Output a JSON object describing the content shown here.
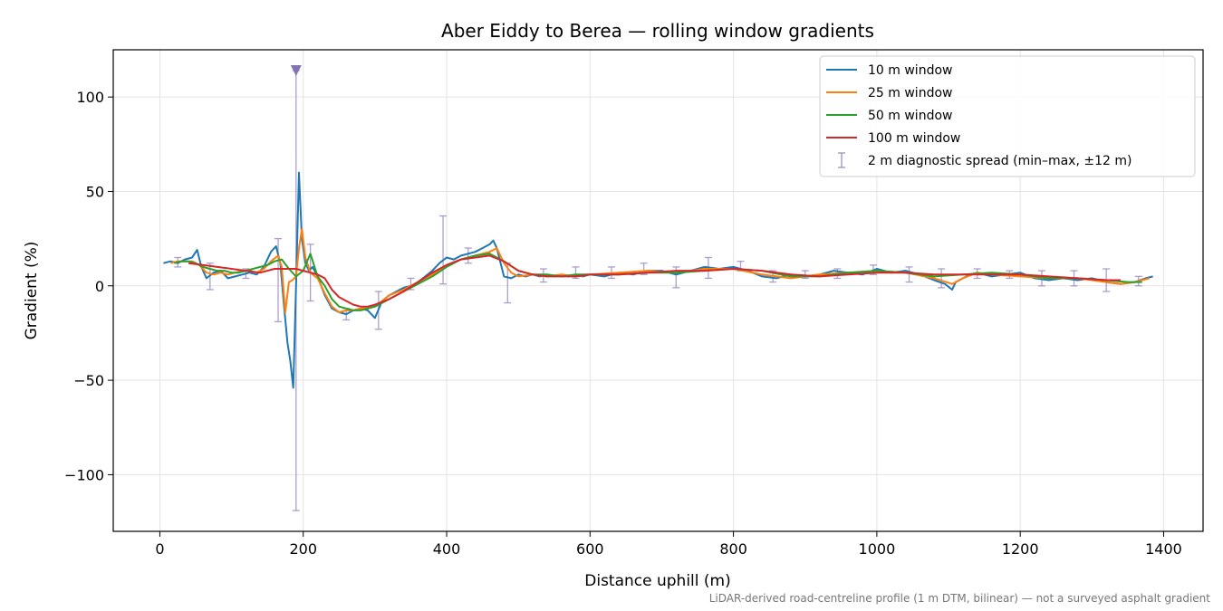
{
  "chart_data": {
    "type": "line",
    "title": "Aber Eiddy to Berea — rolling window gradients",
    "xlabel": "Distance uphill (m)",
    "ylabel": "Gradient (%)",
    "xlim": [
      -65,
      1455
    ],
    "ylim": [
      -130,
      125
    ],
    "xticks": [
      0,
      200,
      400,
      600,
      800,
      1000,
      1200,
      1400
    ],
    "yticks": [
      -100,
      -50,
      0,
      50,
      100
    ],
    "ytick_labels": [
      "−100",
      "−50",
      "0",
      "50",
      "100"
    ],
    "grid": true,
    "legend_position": "top-right",
    "footnote": "LiDAR-derived road-centreline profile (1 m DTM, bilinear) — not a surveyed asphalt gradient",
    "series": [
      {
        "name": "10 m window",
        "color": "#1f77b4",
        "x": [
          5,
          15,
          25,
          35,
          45,
          52,
          58,
          65,
          75,
          85,
          95,
          105,
          115,
          125,
          135,
          145,
          155,
          162,
          168,
          173,
          178,
          182,
          186,
          190,
          194,
          198,
          203,
          208,
          213,
          220,
          230,
          240,
          250,
          260,
          270,
          280,
          290,
          300,
          310,
          320,
          330,
          340,
          350,
          360,
          370,
          380,
          390,
          400,
          410,
          420,
          430,
          440,
          450,
          460,
          465,
          470,
          480,
          490,
          500,
          510,
          520,
          530,
          540,
          550,
          560,
          570,
          580,
          590,
          600,
          620,
          640,
          660,
          680,
          700,
          720,
          740,
          760,
          780,
          800,
          820,
          840,
          860,
          880,
          900,
          920,
          940,
          960,
          980,
          1000,
          1020,
          1040,
          1060,
          1080,
          1095,
          1105,
          1110,
          1120,
          1130,
          1140,
          1160,
          1180,
          1200,
          1220,
          1240,
          1260,
          1280,
          1300,
          1320,
          1340,
          1360,
          1375,
          1385
        ],
        "y": [
          12,
          13,
          12,
          14,
          15,
          19,
          10,
          4,
          7,
          8,
          4,
          5,
          6,
          7,
          6,
          10,
          18,
          21,
          12,
          -10,
          -30,
          -40,
          -54,
          0,
          60,
          25,
          12,
          8,
          10,
          5,
          -5,
          -12,
          -14,
          -15,
          -13,
          -12,
          -13,
          -17,
          -8,
          -5,
          -3,
          -1,
          0,
          2,
          5,
          8,
          12,
          15,
          14,
          16,
          17,
          18,
          20,
          22,
          24,
          20,
          5,
          4,
          6,
          5,
          6,
          5,
          6,
          5,
          6,
          5,
          6,
          5,
          6,
          5,
          7,
          6,
          8,
          8,
          6,
          8,
          10,
          9,
          10,
          8,
          5,
          4,
          6,
          5,
          6,
          8,
          7,
          6,
          9,
          7,
          8,
          6,
          3,
          1,
          -2,
          2,
          4,
          6,
          7,
          5,
          6,
          7,
          4,
          3,
          4,
          3,
          4,
          2,
          1,
          2,
          4,
          5
        ]
      },
      {
        "name": "25 m window",
        "color": "#ff7f0e",
        "x": [
          15,
          25,
          35,
          45,
          55,
          65,
          75,
          85,
          95,
          105,
          115,
          125,
          135,
          145,
          155,
          165,
          170,
          175,
          180,
          185,
          190,
          194,
          198,
          203,
          210,
          220,
          230,
          240,
          250,
          260,
          270,
          280,
          290,
          300,
          310,
          320,
          340,
          360,
          380,
          400,
          420,
          440,
          460,
          470,
          480,
          490,
          500,
          520,
          540,
          560,
          580,
          600,
          640,
          680,
          720,
          760,
          800,
          840,
          880,
          920,
          960,
          1000,
          1040,
          1080,
          1105,
          1120,
          1140,
          1160,
          1200,
          1240,
          1280,
          1320,
          1340,
          1360,
          1380
        ],
        "y": [
          12,
          13,
          13,
          13,
          11,
          7,
          6,
          7,
          6,
          7,
          8,
          8,
          7,
          9,
          13,
          16,
          10,
          -14,
          2,
          3,
          5,
          20,
          30,
          15,
          7,
          4,
          -4,
          -11,
          -14,
          -13,
          -13,
          -12,
          -12,
          -11,
          -8,
          -5,
          -2,
          2,
          6,
          11,
          14,
          16,
          18,
          20,
          12,
          7,
          5,
          6,
          5,
          6,
          5,
          6,
          7,
          8,
          7,
          9,
          9,
          6,
          4,
          6,
          7,
          8,
          7,
          4,
          1,
          4,
          7,
          6,
          5,
          4,
          4,
          2,
          1,
          2,
          4
        ]
      },
      {
        "name": "50 m window",
        "color": "#2ca02c",
        "x": [
          20,
          30,
          40,
          50,
          60,
          70,
          80,
          90,
          100,
          110,
          120,
          130,
          140,
          150,
          160,
          170,
          180,
          190,
          200,
          210,
          220,
          230,
          240,
          250,
          260,
          270,
          280,
          290,
          300,
          310,
          320,
          340,
          360,
          380,
          400,
          420,
          440,
          460,
          480,
          500,
          520,
          540,
          560,
          580,
          600,
          640,
          680,
          720,
          760,
          800,
          840,
          880,
          920,
          960,
          1000,
          1040,
          1080,
          1120,
          1160,
          1200,
          1240,
          1280,
          1320,
          1350,
          1370
        ],
        "y": [
          12,
          13,
          13,
          12,
          10,
          9,
          8,
          8,
          7,
          7,
          8,
          9,
          10,
          11,
          13,
          14,
          9,
          5,
          8,
          17,
          5,
          0,
          -7,
          -11,
          -12,
          -13,
          -13,
          -12,
          -11,
          -9,
          -7,
          -3,
          1,
          5,
          10,
          14,
          16,
          17,
          13,
          8,
          6,
          6,
          5,
          6,
          6,
          6,
          7,
          7,
          8,
          9,
          8,
          5,
          5,
          7,
          8,
          7,
          5,
          6,
          7,
          6,
          4,
          4,
          3,
          2,
          2
        ]
      },
      {
        "name": "100 m window",
        "color": "#d62728",
        "x": [
          40,
          60,
          80,
          100,
          120,
          140,
          160,
          170,
          180,
          190,
          200,
          210,
          220,
          230,
          240,
          250,
          260,
          270,
          280,
          290,
          300,
          320,
          340,
          360,
          380,
          400,
          420,
          440,
          460,
          480,
          500,
          520,
          540,
          560,
          580,
          600,
          640,
          680,
          720,
          760,
          800,
          840,
          880,
          920,
          960,
          1000,
          1040,
          1080,
          1120,
          1160,
          1200,
          1240,
          1280,
          1320,
          1340
        ],
        "y": [
          12,
          11,
          10,
          9,
          8,
          7,
          9,
          9,
          9,
          9,
          8,
          7,
          6,
          4,
          -2,
          -6,
          -8,
          -10,
          -11,
          -11,
          -10,
          -7,
          -3,
          2,
          7,
          11,
          14,
          15,
          16,
          13,
          8,
          6,
          5,
          5,
          5,
          6,
          6,
          7,
          8,
          8,
          9,
          8,
          6,
          5,
          6,
          7,
          7,
          6,
          6,
          6,
          6,
          5,
          4,
          3,
          3
        ]
      }
    ],
    "diagnostic_spread": {
      "name": "2 m diagnostic spread (min–max, ±12 m)",
      "color": "#9f8fc3",
      "x": [
        25,
        70,
        120,
        165,
        190,
        210,
        260,
        305,
        350,
        395,
        430,
        485,
        535,
        580,
        630,
        675,
        720,
        765,
        810,
        855,
        900,
        945,
        995,
        1045,
        1090,
        1140,
        1185,
        1230,
        1275,
        1320,
        1365
      ],
      "low": [
        10,
        -2,
        4,
        -19,
        -119,
        -8,
        -18,
        -23,
        -2,
        1,
        12,
        -9,
        2,
        4,
        4,
        6,
        -1,
        4,
        8,
        2,
        4,
        4,
        6,
        2,
        -1,
        4,
        4,
        0,
        0,
        -3,
        0
      ],
      "high": [
        15,
        12,
        9,
        25,
        114,
        22,
        -12,
        -3,
        4,
        37,
        20,
        12,
        9,
        10,
        10,
        12,
        10,
        15,
        13,
        8,
        8,
        9,
        11,
        10,
        9,
        9,
        8,
        8,
        8,
        9,
        5
      ],
      "clipped_marker_x": 190
    }
  }
}
